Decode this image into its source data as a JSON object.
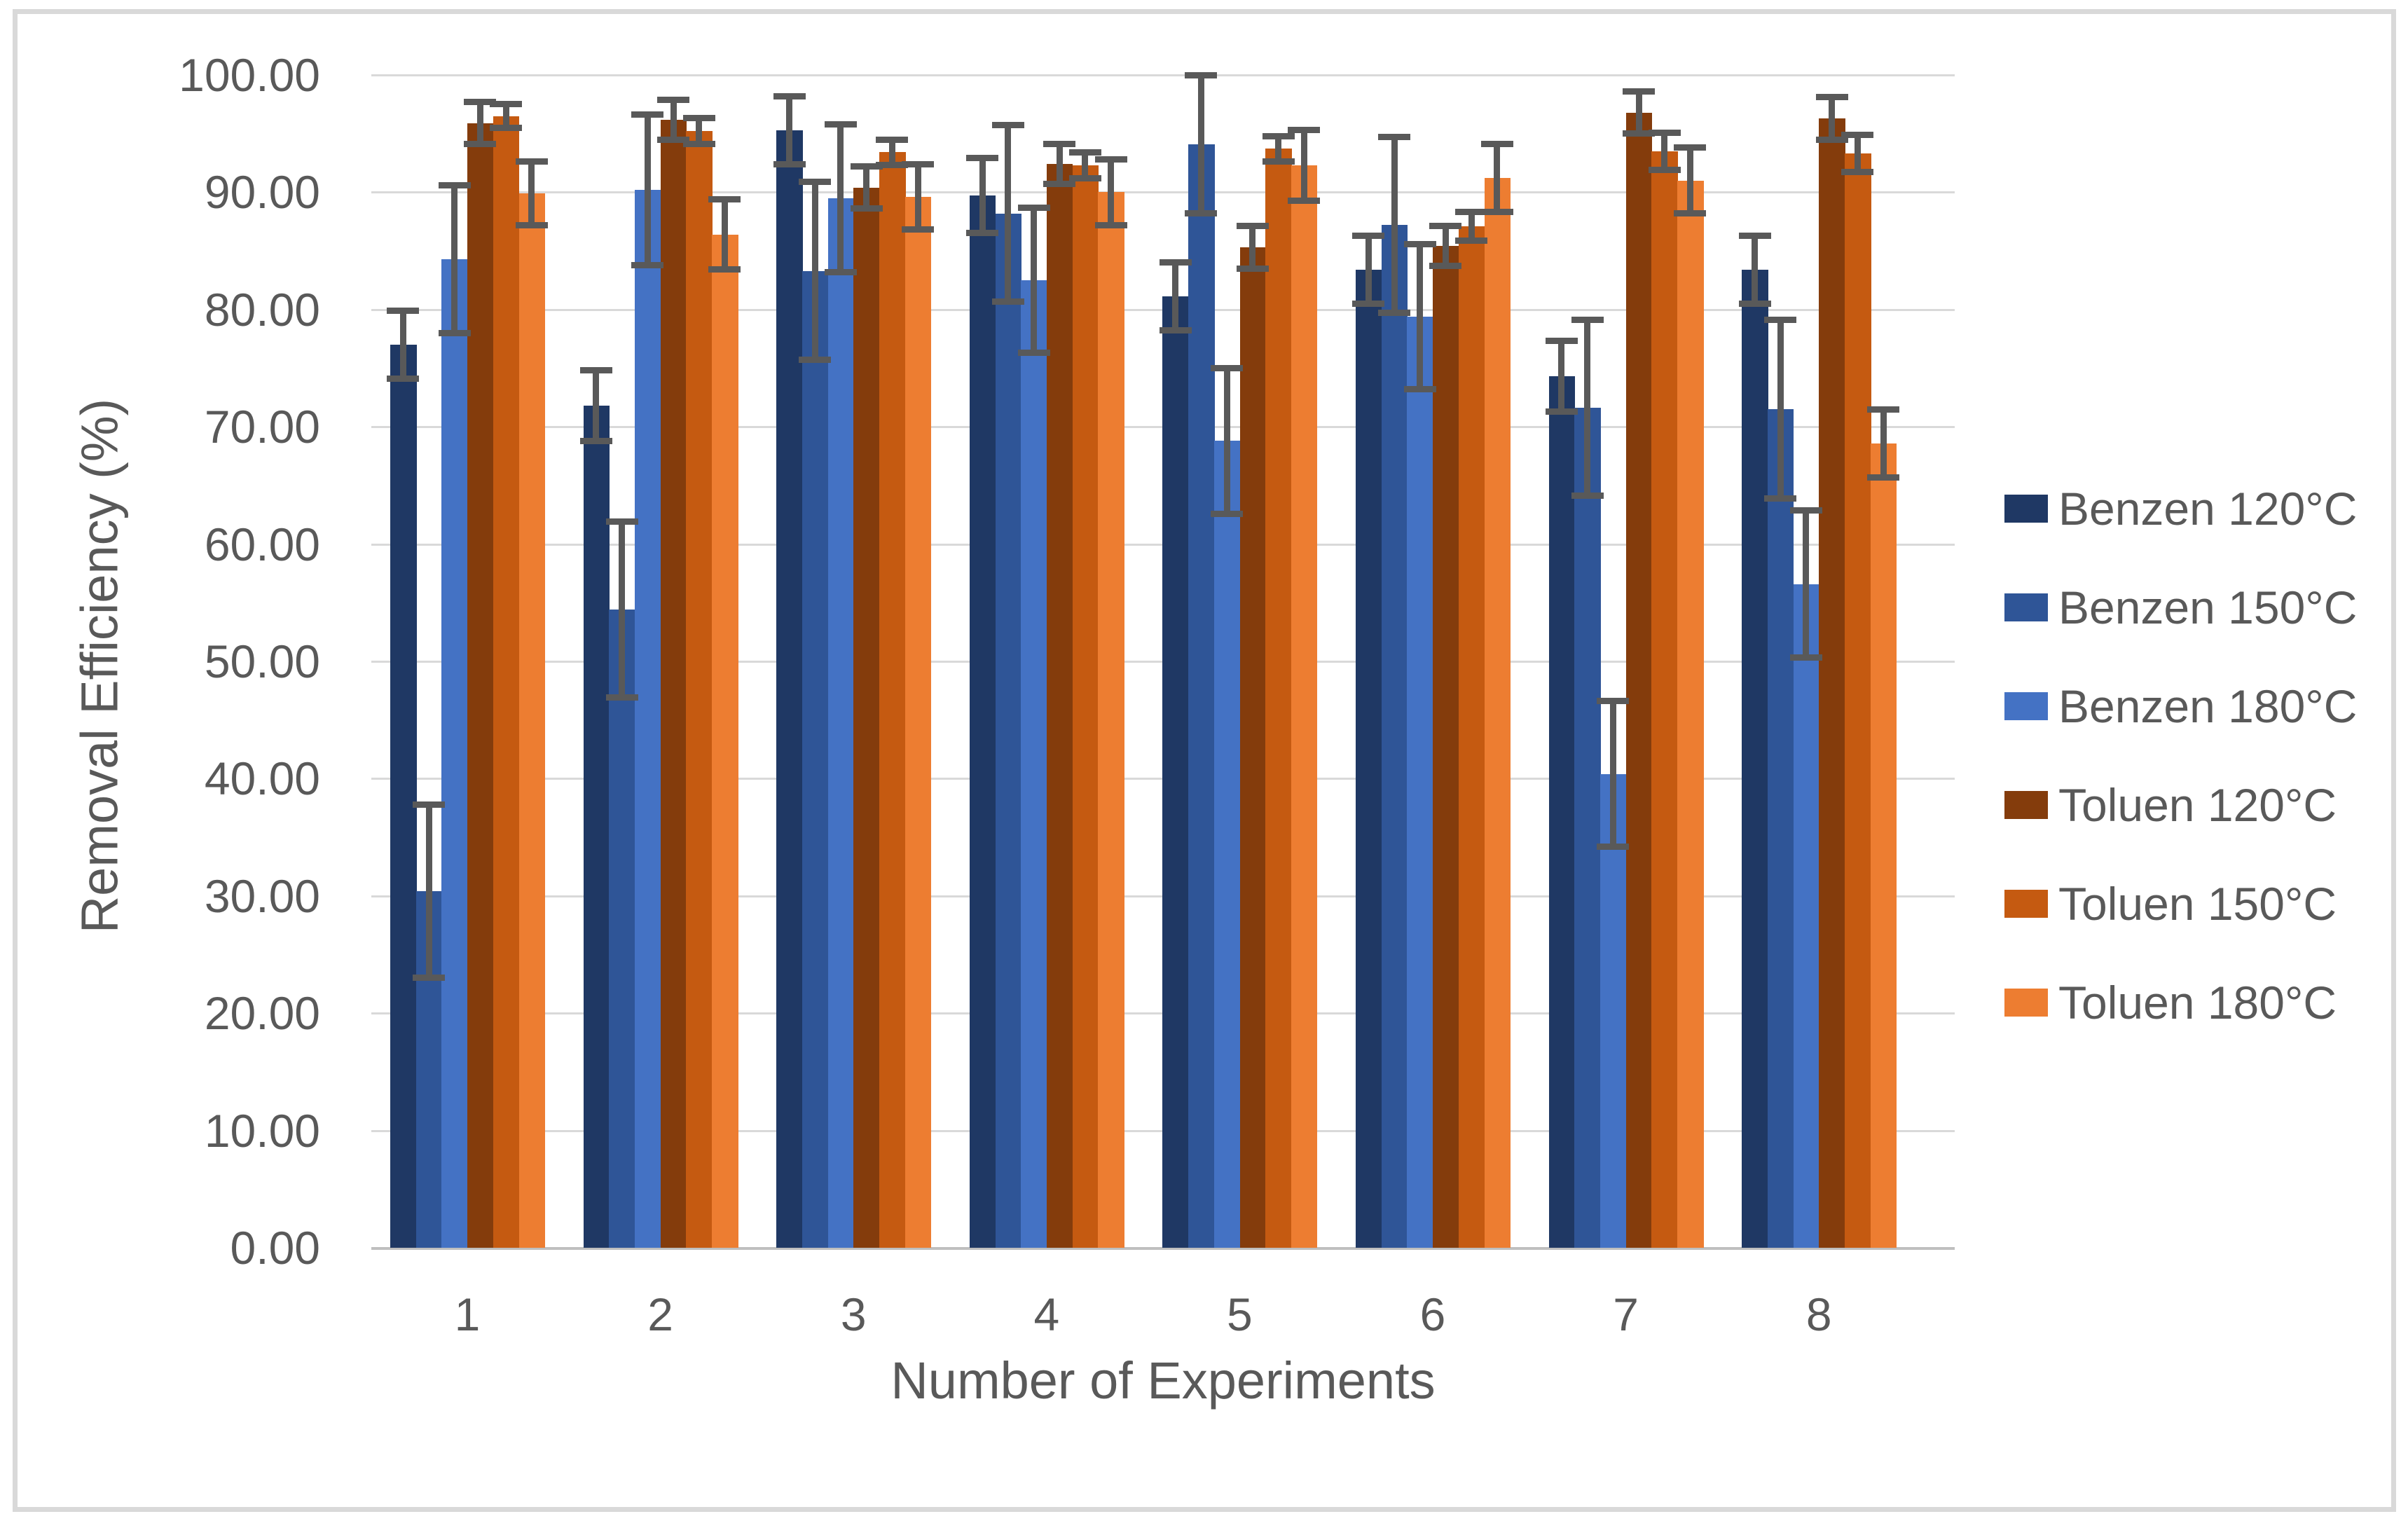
{
  "window": {
    "background": "#ffffff",
    "border_color": "#D9D9D9"
  },
  "chart_data": {
    "type": "bar",
    "title": "",
    "xlabel": "Number of Experiments",
    "ylabel": "Removal Efficiency (%)",
    "ylim": [
      0,
      100
    ],
    "ytick_step": 10,
    "ytick_labels": [
      "0.00",
      "10.00",
      "20.00",
      "30.00",
      "40.00",
      "50.00",
      "60.00",
      "70.00",
      "80.00",
      "90.00",
      "100.00"
    ],
    "categories": [
      "1",
      "2",
      "3",
      "4",
      "5",
      "6",
      "7",
      "8"
    ],
    "grid": true,
    "legend_position": "right",
    "gridline_color": "#D9D9D9",
    "axis_line_color": "#BFBFBF",
    "axis_text_color": "#595959",
    "error_bar_color": "#595959",
    "error_bars": true,
    "series": [
      {
        "name": "Benzen 120°C",
        "color": "#1F3864",
        "values": [
          77.0,
          71.8,
          95.3,
          89.7,
          81.1,
          83.4,
          74.3,
          83.4
        ],
        "errors": [
          2.9,
          3.0,
          2.9,
          3.2,
          2.9,
          2.9,
          3.0,
          2.9
        ]
      },
      {
        "name": "Benzen 150°C",
        "color": "#2F5597",
        "values": [
          30.4,
          54.4,
          83.3,
          88.2,
          94.1,
          87.2,
          71.6,
          71.5
        ],
        "errors": [
          7.4,
          7.5,
          7.6,
          7.5,
          5.9,
          7.5,
          7.5,
          7.6
        ]
      },
      {
        "name": "Benzen 180°C",
        "color": "#4472C4",
        "values": [
          84.3,
          90.2,
          89.5,
          82.5,
          68.8,
          79.4,
          40.4,
          56.6
        ],
        "errors": [
          6.3,
          6.4,
          6.3,
          6.2,
          6.2,
          6.2,
          6.2,
          6.3
        ]
      },
      {
        "name": "Toluen 120°C",
        "color": "#843C0C",
        "values": [
          95.9,
          96.2,
          90.4,
          92.4,
          85.3,
          85.4,
          96.8,
          96.3
        ],
        "errors": [
          1.8,
          1.7,
          1.8,
          1.7,
          1.8,
          1.7,
          1.8,
          1.8
        ]
      },
      {
        "name": "Toluen 150°C",
        "color": "#C55A11",
        "values": [
          96.5,
          95.2,
          93.4,
          92.3,
          93.7,
          87.1,
          93.5,
          93.3
        ],
        "errors": [
          1.0,
          1.1,
          1.1,
          1.1,
          1.1,
          1.2,
          1.6,
          1.6
        ]
      },
      {
        "name": "Toluen 180°C",
        "color": "#ED7D31",
        "values": [
          89.9,
          86.4,
          89.6,
          90.0,
          92.3,
          91.2,
          91.0,
          68.6
        ],
        "errors": [
          2.7,
          3.0,
          2.8,
          2.8,
          3.0,
          2.9,
          2.8,
          2.9
        ]
      }
    ]
  }
}
